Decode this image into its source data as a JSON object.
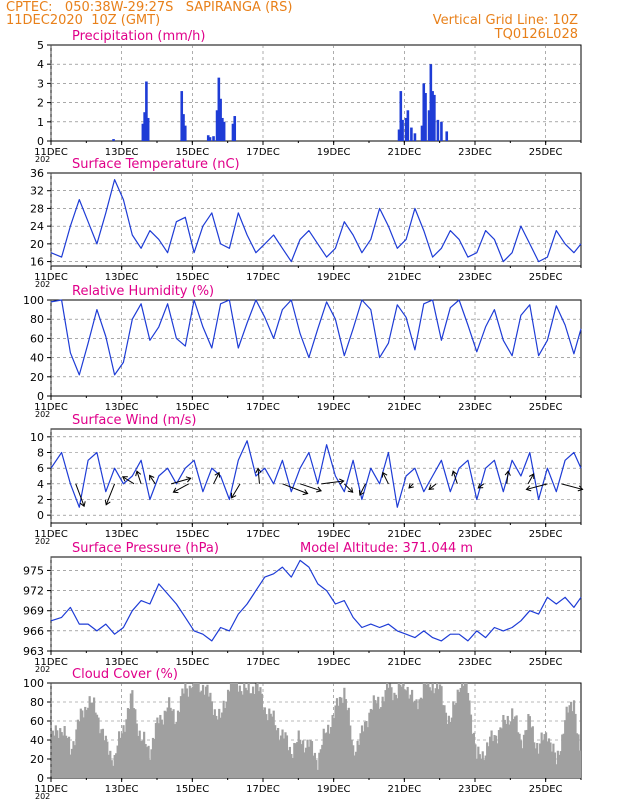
{
  "header": {
    "line1_left": "CPTEC:   050:38W-29:27S   SAPIRANGA (RS)",
    "line2_left": "11DEC2020  10Z (GMT)",
    "line1_right": "Vertical Grid Line: 10Z",
    "line2_right": "TQ0126L028"
  },
  "colors": {
    "header": "#e8801a",
    "title": "#e0008a",
    "line": "#1e3cd6",
    "bar": "#1e3cd6",
    "cloud": "#a0a0a0",
    "grid": "#777777"
  },
  "x_axis": {
    "ticks": [
      "11DEC",
      "13DEC",
      "15DEC",
      "17DEC",
      "19DEC",
      "21DEC",
      "23DEC",
      "25DEC"
    ],
    "tick_days": [
      0,
      2,
      4,
      6,
      8,
      10,
      12,
      14
    ],
    "start_stub": "202",
    "range_days": [
      0,
      15
    ]
  },
  "chart_data": [
    {
      "type": "bar",
      "title": "Precipitation (mm/h)",
      "ylim": [
        0,
        5
      ],
      "yticks": [
        0,
        1,
        2,
        3,
        4,
        5
      ],
      "values_at_day": [
        [
          1.77,
          0.1
        ],
        [
          2.6,
          0.9
        ],
        [
          2.65,
          1.5
        ],
        [
          2.7,
          3.1
        ],
        [
          2.75,
          1.2
        ],
        [
          3.7,
          2.6
        ],
        [
          3.75,
          1.4
        ],
        [
          3.8,
          0.8
        ],
        [
          4.45,
          0.3
        ],
        [
          4.5,
          0.2
        ],
        [
          4.6,
          0.25
        ],
        [
          4.7,
          1.6
        ],
        [
          4.75,
          3.3
        ],
        [
          4.8,
          2.2
        ],
        [
          4.85,
          1.2
        ],
        [
          4.9,
          1.0
        ],
        [
          5.15,
          0.9
        ],
        [
          5.2,
          1.3
        ],
        [
          9.85,
          0.6
        ],
        [
          9.9,
          2.6
        ],
        [
          9.95,
          1.1
        ],
        [
          10.05,
          1.2
        ],
        [
          10.1,
          1.6
        ],
        [
          10.2,
          0.7
        ],
        [
          10.3,
          0.4
        ],
        [
          10.5,
          0.8
        ],
        [
          10.55,
          3.0
        ],
        [
          10.6,
          2.5
        ],
        [
          10.7,
          1.6
        ],
        [
          10.75,
          4.0
        ],
        [
          10.8,
          2.6
        ],
        [
          10.85,
          2.4
        ],
        [
          10.95,
          1.1
        ],
        [
          11.05,
          1.0
        ],
        [
          11.2,
          0.5
        ]
      ]
    },
    {
      "type": "line",
      "title": "Surface Temperature (nC)",
      "ylim": [
        15,
        36
      ],
      "yticks": [
        16,
        20,
        24,
        28,
        32,
        36
      ],
      "x_days": [
        0,
        0.3,
        0.55,
        0.8,
        1.05,
        1.3,
        1.55,
        1.8,
        2.05,
        2.3,
        2.55,
        2.8,
        3.05,
        3.3,
        3.55,
        3.8,
        4.05,
        4.3,
        4.55,
        4.8,
        5.05,
        5.3,
        5.55,
        5.8,
        6.05,
        6.3,
        6.55,
        6.8,
        7.05,
        7.3,
        7.55,
        7.8,
        8.05,
        8.3,
        8.55,
        8.8,
        9.05,
        9.3,
        9.55,
        9.8,
        10.05,
        10.3,
        10.55,
        10.8,
        11.05,
        11.3,
        11.55,
        11.8,
        12.05,
        12.3,
        12.55,
        12.8,
        13.05,
        13.3,
        13.55,
        13.8,
        14.05,
        14.3,
        14.55,
        14.8,
        15.0
      ],
      "values": [
        18,
        17,
        24,
        30,
        25,
        20,
        27,
        34.5,
        30,
        22,
        19,
        23,
        21,
        18,
        25,
        26,
        18,
        24,
        27,
        20,
        19,
        27,
        22,
        18,
        20,
        22,
        19,
        16,
        21,
        23,
        20,
        17,
        19,
        25,
        22,
        18,
        21,
        28,
        24,
        19,
        21,
        28,
        23,
        17,
        19,
        23,
        21,
        17,
        18,
        23,
        21,
        16,
        18,
        24,
        20,
        16,
        17,
        23,
        20,
        18,
        20
      ]
    },
    {
      "type": "line",
      "title": "Relative Humidity (%)",
      "ylim": [
        0,
        100
      ],
      "yticks": [
        0,
        20,
        40,
        60,
        80,
        100
      ],
      "x_days": [
        0,
        0.3,
        0.55,
        0.8,
        1.05,
        1.3,
        1.55,
        1.8,
        2.05,
        2.3,
        2.55,
        2.8,
        3.05,
        3.3,
        3.55,
        3.8,
        4.05,
        4.3,
        4.55,
        4.8,
        5.05,
        5.3,
        5.55,
        5.8,
        6.05,
        6.3,
        6.55,
        6.8,
        7.05,
        7.3,
        7.55,
        7.8,
        8.05,
        8.3,
        8.55,
        8.8,
        9.05,
        9.3,
        9.55,
        9.8,
        10.05,
        10.3,
        10.55,
        10.8,
        11.05,
        11.3,
        11.55,
        11.8,
        12.05,
        12.3,
        12.55,
        12.8,
        13.05,
        13.3,
        13.55,
        13.8,
        14.05,
        14.3,
        14.55,
        14.8,
        15.0
      ],
      "values": [
        98,
        100,
        45,
        22,
        55,
        90,
        62,
        22,
        35,
        80,
        96,
        58,
        72,
        96,
        60,
        52,
        100,
        72,
        50,
        96,
        100,
        50,
        76,
        100,
        82,
        60,
        90,
        100,
        65,
        40,
        70,
        98,
        80,
        42,
        70,
        100,
        90,
        40,
        55,
        95,
        82,
        48,
        96,
        100,
        58,
        92,
        100,
        74,
        46,
        72,
        90,
        58,
        42,
        84,
        95,
        42,
        58,
        94,
        74,
        44,
        70
      ]
    },
    {
      "type": "line",
      "title": "Surface Wind (m/s)",
      "ylim": [
        -1,
        11
      ],
      "yticks": [
        0,
        2,
        4,
        6,
        8,
        10
      ],
      "x_days": [
        0,
        0.3,
        0.55,
        0.8,
        1.05,
        1.3,
        1.55,
        1.8,
        2.05,
        2.3,
        2.55,
        2.8,
        3.05,
        3.3,
        3.55,
        3.8,
        4.05,
        4.3,
        4.55,
        4.8,
        5.05,
        5.3,
        5.55,
        5.8,
        6.05,
        6.3,
        6.55,
        6.8,
        7.05,
        7.3,
        7.55,
        7.8,
        8.05,
        8.3,
        8.55,
        8.8,
        9.05,
        9.3,
        9.55,
        9.8,
        10.05,
        10.3,
        10.55,
        10.8,
        11.05,
        11.3,
        11.55,
        11.8,
        12.05,
        12.3,
        12.55,
        12.8,
        13.05,
        13.3,
        13.55,
        13.8,
        14.05,
        14.3,
        14.55,
        14.8,
        15.0
      ],
      "values": [
        6,
        8,
        4,
        1,
        7,
        8,
        3,
        6,
        4,
        5,
        7,
        2,
        5,
        6,
        4,
        6,
        7,
        3,
        6,
        5,
        2,
        7,
        9.5,
        5,
        6,
        4,
        7,
        3,
        6,
        8,
        4,
        9,
        5,
        3,
        7,
        2,
        6,
        4,
        8,
        1,
        5,
        6,
        3,
        5,
        7,
        3,
        6,
        7,
        2,
        6,
        7,
        3,
        7,
        5,
        8,
        2,
        6,
        3,
        7,
        8,
        6
      ],
      "vectors": [
        {
          "day": 0.7,
          "u": 0.6,
          "v": -1.6
        },
        {
          "day": 1.8,
          "u": -0.6,
          "v": -1.5
        },
        {
          "day": 2.35,
          "u": -0.8,
          "v": 0.5
        },
        {
          "day": 2.55,
          "u": -0.3,
          "v": 0.9
        },
        {
          "day": 2.95,
          "u": -0.4,
          "v": 0.6
        },
        {
          "day": 3.4,
          "u": 1.4,
          "v": 0.4
        },
        {
          "day": 3.9,
          "u": -1.1,
          "v": -0.6
        },
        {
          "day": 4.6,
          "u": 0.4,
          "v": 0.8
        },
        {
          "day": 5.35,
          "u": -0.6,
          "v": -1.0
        },
        {
          "day": 5.9,
          "u": -0.1,
          "v": 1.1
        },
        {
          "day": 6.55,
          "u": 1.8,
          "v": -0.7
        },
        {
          "day": 7.05,
          "u": 1.5,
          "v": -0.5
        },
        {
          "day": 7.65,
          "u": 1.6,
          "v": 0.2
        },
        {
          "day": 8.3,
          "u": 0.6,
          "v": -0.6
        },
        {
          "day": 8.9,
          "u": -0.4,
          "v": -0.8
        },
        {
          "day": 9.55,
          "u": -0.4,
          "v": 0.8
        },
        {
          "day": 10.25,
          "u": -0.3,
          "v": -0.3
        },
        {
          "day": 10.9,
          "u": -0.5,
          "v": -0.4
        },
        {
          "day": 11.5,
          "u": -0.3,
          "v": 0.9
        },
        {
          "day": 12.25,
          "u": -0.4,
          "v": -0.3
        },
        {
          "day": 12.9,
          "u": 0.1,
          "v": 0.9
        },
        {
          "day": 13.5,
          "u": 0.4,
          "v": 0.7
        },
        {
          "day": 14.05,
          "u": -1.5,
          "v": -0.4
        },
        {
          "day": 14.45,
          "u": 1.5,
          "v": -0.4
        }
      ]
    },
    {
      "type": "line",
      "title": "Surface Pressure (hPa)",
      "subtitle": "Model Altitude: 371.044 m",
      "ylim": [
        963,
        977
      ],
      "yticks": [
        963,
        966,
        969,
        972,
        975
      ],
      "x_days": [
        0,
        0.3,
        0.55,
        0.8,
        1.05,
        1.3,
        1.55,
        1.8,
        2.05,
        2.3,
        2.55,
        2.8,
        3.05,
        3.3,
        3.55,
        3.8,
        4.05,
        4.3,
        4.55,
        4.8,
        5.05,
        5.3,
        5.55,
        5.8,
        6.05,
        6.3,
        6.55,
        6.8,
        7.05,
        7.3,
        7.55,
        7.8,
        8.05,
        8.3,
        8.55,
        8.8,
        9.05,
        9.3,
        9.55,
        9.8,
        10.05,
        10.3,
        10.55,
        10.8,
        11.05,
        11.3,
        11.55,
        11.8,
        12.05,
        12.3,
        12.55,
        12.8,
        13.05,
        13.3,
        13.55,
        13.8,
        14.05,
        14.3,
        14.55,
        14.8,
        15.0
      ],
      "values": [
        967.5,
        968,
        969.5,
        967,
        967,
        966,
        967,
        965.5,
        966.5,
        969,
        970.5,
        970,
        973,
        971.5,
        970,
        968,
        966,
        965.5,
        964.5,
        966.5,
        966,
        968.5,
        970,
        972,
        974,
        974.5,
        975.5,
        974,
        976.5,
        975.5,
        973,
        972,
        970,
        970.5,
        968,
        966.5,
        967,
        966.5,
        967,
        966,
        965.5,
        965,
        966,
        965,
        964.5,
        965.5,
        965.5,
        964.5,
        966,
        965,
        966.5,
        966,
        966.5,
        967.5,
        969,
        968.5,
        971,
        970,
        971,
        969.5,
        971
      ]
    },
    {
      "type": "bar",
      "title": "Cloud Cover (%)",
      "ylim": [
        0,
        100
      ],
      "yticks": [
        0,
        20,
        40,
        60,
        80,
        100
      ],
      "x_days": [
        0,
        0.3,
        0.55,
        0.8,
        1.05,
        1.3,
        1.55,
        1.8,
        2.05,
        2.3,
        2.55,
        2.8,
        3.05,
        3.3,
        3.55,
        3.8,
        4.05,
        4.3,
        4.55,
        4.8,
        5.05,
        5.3,
        5.55,
        5.8,
        6.05,
        6.3,
        6.55,
        6.8,
        7.05,
        7.3,
        7.55,
        7.8,
        8.05,
        8.3,
        8.55,
        8.8,
        9.05,
        9.3,
        9.55,
        9.8,
        10.05,
        10.3,
        10.55,
        10.8,
        11.05,
        11.3,
        11.55,
        11.8,
        12.05,
        12.3,
        12.55,
        12.8,
        13.05,
        13.3,
        13.55,
        13.8,
        14.05,
        14.3,
        14.55,
        14.8,
        15.0
      ],
      "values": [
        40,
        55,
        30,
        60,
        82,
        70,
        35,
        20,
        55,
        85,
        40,
        30,
        60,
        75,
        65,
        95,
        100,
        98,
        80,
        60,
        100,
        100,
        90,
        100,
        75,
        60,
        45,
        30,
        40,
        35,
        20,
        50,
        70,
        95,
        30,
        45,
        75,
        80,
        95,
        90,
        100,
        75,
        95,
        100,
        90,
        55,
        100,
        95,
        20,
        30,
        45,
        55,
        70,
        40,
        60,
        30,
        50,
        15,
        60,
        85,
        10
      ]
    }
  ]
}
